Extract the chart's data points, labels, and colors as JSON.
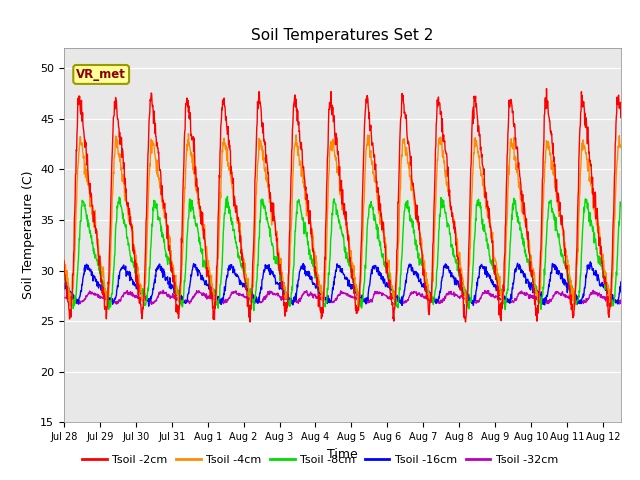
{
  "title": "Soil Temperatures Set 2",
  "xlabel": "Time",
  "ylabel": "Soil Temperature (C)",
  "ylim": [
    15,
    52
  ],
  "yticks": [
    15,
    20,
    25,
    30,
    35,
    40,
    45,
    50
  ],
  "annotation_text": "VR_met",
  "colors": {
    "tsoil_2cm": "#FF0000",
    "tsoil_4cm": "#FF8C00",
    "tsoil_8cm": "#00DD00",
    "tsoil_16cm": "#0000FF",
    "tsoil_32cm": "#BB00BB"
  },
  "legend_labels": [
    "Tsoil -2cm",
    "Tsoil -4cm",
    "Tsoil -8cm",
    "Tsoil -16cm",
    "Tsoil -32cm"
  ],
  "xtick_labels": [
    "Jul 28",
    "Jul 29",
    "Jul 30",
    "Jul 31",
    "Aug 1",
    "Aug 2",
    "Aug 3",
    "Aug 4",
    "Aug 5",
    "Aug 6",
    "Aug 7",
    "Aug 8",
    "Aug 9",
    "Aug 10",
    "Aug 11",
    "Aug 12"
  ],
  "background_color": "#E8E8E8",
  "fig_background": "#FFFFFF",
  "linewidth": 1.0,
  "annotation_box_color": "#FFFF99",
  "annotation_text_color": "#8B0000",
  "annotation_border_color": "#999900"
}
